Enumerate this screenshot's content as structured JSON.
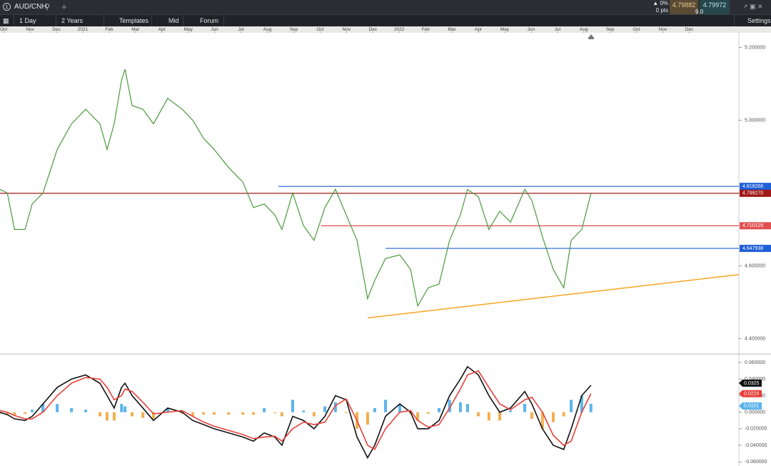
{
  "toolbar": {
    "symbol": "AUD/CNH",
    "change_pct": "0%",
    "change_pts": "0 pts",
    "bid": "4.79882",
    "ask": "4.79972",
    "spread": "9.0",
    "interval": "1 Day",
    "range": "2 Years",
    "templates": "Templates",
    "price_mode": "Mid",
    "forum": "Forum",
    "settings": "Settings"
  },
  "chart_data": [
    {
      "type": "line",
      "x": [
        -0.14,
        0.14,
        0.41,
        0.81,
        1.08,
        1.49,
        2.03,
        2.57,
        3.11,
        3.65,
        3.92,
        4.19,
        4.47,
        4.6,
        4.87,
        5.28,
        5.68,
        6.22,
        6.77,
        7.17,
        7.58,
        7.98,
        8.53,
        9.07,
        9.47,
        9.88,
        10.28,
        10.55,
        10.96,
        11.37,
        11.77,
        12.18,
        12.58,
        12.99,
        13.4,
        13.8,
        14.07,
        14.48,
        15.02,
        15.43,
        15.7,
        16.1,
        16.51,
        16.91,
        17.32,
        17.59,
        18.0,
        18.4,
        18.81,
        19.22,
        19.76,
        20.03,
        20.43,
        20.84,
        21.24,
        21.52,
        21.92,
        22.27
      ],
      "series": [
        {
          "color": "#4a9a3c",
          "values": [
            4.81,
            4.8,
            4.7,
            4.7,
            4.77,
            4.8,
            4.92,
            4.99,
            5.03,
            4.99,
            4.92,
            4.99,
            5.11,
            5.14,
            5.04,
            5.03,
            4.99,
            5.06,
            5.03,
            5.0,
            4.95,
            4.92,
            4.87,
            4.83,
            4.76,
            4.77,
            4.74,
            4.7,
            4.8,
            4.71,
            4.67,
            4.76,
            4.81,
            4.74,
            4.67,
            4.51,
            4.56,
            4.62,
            4.63,
            4.59,
            4.49,
            4.54,
            4.55,
            4.67,
            4.74,
            4.81,
            4.79,
            4.7,
            4.75,
            4.72,
            4.81,
            4.78,
            4.68,
            4.59,
            4.54,
            4.67,
            4.7,
            4.799
          ]
        }
      ],
      "xlim": [
        -0.14,
        27.88
      ],
      "xticks": [
        {
          "value": 0,
          "label": "Oct"
        },
        {
          "value": 1,
          "label": "Nov"
        },
        {
          "value": 2,
          "label": "Dec"
        },
        {
          "value": 3,
          "label": "2021"
        },
        {
          "value": 4,
          "label": "Feb"
        },
        {
          "value": 5,
          "label": "Mar"
        },
        {
          "value": 6,
          "label": "Apr"
        },
        {
          "value": 7,
          "label": "May"
        },
        {
          "value": 8,
          "label": "Jun"
        },
        {
          "value": 9,
          "label": "Jul"
        },
        {
          "value": 10,
          "label": "Aug"
        },
        {
          "value": 11,
          "label": "Sep"
        },
        {
          "value": 12,
          "label": "Oct"
        },
        {
          "value": 13,
          "label": "Nov"
        },
        {
          "value": 14,
          "label": "Dec"
        },
        {
          "value": 15,
          "label": "2022"
        },
        {
          "value": 16,
          "label": "Feb"
        },
        {
          "value": 17,
          "label": "Mar"
        },
        {
          "value": 18,
          "label": "Apr"
        },
        {
          "value": 19,
          "label": "May"
        },
        {
          "value": 20,
          "label": "Jun"
        },
        {
          "value": 21,
          "label": "Jul"
        },
        {
          "value": 22,
          "label": "Aug"
        },
        {
          "value": 23,
          "label": "Sep"
        },
        {
          "value": 24,
          "label": "Oct"
        },
        {
          "value": 25,
          "label": "Nov"
        },
        {
          "value": 26,
          "label": "Dec"
        }
      ],
      "ylim": [
        4.36,
        5.24
      ],
      "yticks": [
        {
          "value": 4.4,
          "label": "4.400000"
        },
        {
          "value": 4.6,
          "label": "4.600000"
        },
        {
          "value": 4.8,
          "label": "4.800000"
        },
        {
          "value": 5.0,
          "label": "5.000000"
        },
        {
          "value": 5.2,
          "label": "5.200000"
        }
      ],
      "levels": [
        {
          "value": 4.818266,
          "label": "4.818266",
          "color": "#1f5fd6",
          "from": 10.42
        },
        {
          "value": 4.710129,
          "label": "4.710129",
          "color": "#e05050",
          "from": 12.04
        },
        {
          "value": 4.647938,
          "label": "4.647938",
          "color": "#1f5fd6",
          "from": 14.48
        },
        {
          "value": 4.79927,
          "label": "4.799270",
          "color": "#a01818",
          "from": -0.14
        }
      ],
      "trendline": {
        "x": [
          13.8,
          27.88
        ],
        "y": [
          4.457,
          4.576
        ],
        "color": "#f5a623"
      }
    },
    {
      "type": "macd",
      "x": [
        -0.14,
        0.14,
        0.41,
        0.81,
        1.08,
        1.49,
        2.03,
        2.57,
        3.11,
        3.65,
        3.92,
        4.19,
        4.47,
        4.6,
        4.87,
        5.28,
        5.68,
        6.22,
        6.77,
        7.17,
        7.58,
        7.98,
        8.53,
        9.07,
        9.47,
        9.88,
        10.28,
        10.55,
        10.96,
        11.37,
        11.77,
        12.18,
        12.58,
        12.99,
        13.4,
        13.8,
        14.07,
        14.48,
        15.02,
        15.43,
        15.7,
        16.1,
        16.51,
        16.91,
        17.32,
        17.59,
        18.0,
        18.4,
        18.81,
        19.22,
        19.76,
        20.03,
        20.43,
        20.84,
        21.24,
        21.52,
        21.92,
        22.27
      ],
      "series": [
        {
          "color": "#111111",
          "values": [
            0.0,
            -0.003,
            -0.008,
            -0.01,
            -0.005,
            0.01,
            0.03,
            0.04,
            0.045,
            0.035,
            0.02,
            0.005,
            0.03,
            0.035,
            0.02,
            0.005,
            -0.01,
            0.005,
            0.0,
            -0.01,
            -0.015,
            -0.02,
            -0.025,
            -0.03,
            -0.035,
            -0.025,
            -0.03,
            -0.04,
            -0.005,
            -0.01,
            -0.02,
            -0.005,
            0.02,
            0.015,
            -0.03,
            -0.055,
            -0.04,
            -0.005,
            0.01,
            0.0,
            -0.02,
            -0.02,
            -0.01,
            0.02,
            0.04,
            0.055,
            0.045,
            0.02,
            0.0,
            0.005,
            0.025,
            0.01,
            -0.02,
            -0.04,
            -0.045,
            -0.02,
            0.02,
            0.0325
          ]
        },
        {
          "color": "#e8403a",
          "values": [
            0.002,
            0.0,
            -0.004,
            -0.008,
            -0.008,
            0.0,
            0.02,
            0.035,
            0.042,
            0.04,
            0.03,
            0.015,
            0.02,
            0.028,
            0.025,
            0.012,
            -0.002,
            0.0,
            0.002,
            -0.005,
            -0.012,
            -0.017,
            -0.022,
            -0.027,
            -0.032,
            -0.03,
            -0.029,
            -0.035,
            -0.02,
            -0.012,
            -0.015,
            -0.012,
            0.008,
            0.016,
            -0.01,
            -0.04,
            -0.045,
            -0.02,
            0.0,
            0.002,
            -0.01,
            -0.018,
            -0.015,
            0.005,
            0.028,
            0.045,
            0.05,
            0.03,
            0.01,
            0.003,
            0.015,
            0.018,
            0.0,
            -0.028,
            -0.04,
            -0.035,
            0.0,
            0.0224
          ]
        }
      ],
      "histogram": {
        "positive_color": "#5ab4ea",
        "negative_color": "#f0b050",
        "values": [
          -0.002,
          -0.003,
          -0.004,
          -0.002,
          0.003,
          0.01,
          0.01,
          0.005,
          0.003,
          -0.005,
          -0.01,
          -0.01,
          0.01,
          0.007,
          -0.005,
          -0.007,
          -0.008,
          0.005,
          -0.002,
          -0.005,
          -0.003,
          -0.003,
          -0.003,
          -0.003,
          -0.003,
          0.005,
          -0.001,
          -0.005,
          0.015,
          0.002,
          -0.005,
          0.007,
          0.012,
          -0.001,
          -0.02,
          -0.015,
          0.005,
          0.015,
          0.01,
          -0.002,
          -0.01,
          -0.002,
          0.005,
          0.015,
          0.012,
          0.01,
          -0.005,
          -0.01,
          -0.01,
          0.002,
          0.01,
          -0.008,
          -0.02,
          -0.012,
          -0.005,
          0.015,
          0.02,
          0.0101
        ]
      },
      "xlim": [
        -0.14,
        27.88
      ],
      "ylim": [
        -0.065,
        0.0695
      ],
      "yticks": [
        {
          "value": -0.06,
          "label": "-0.060000"
        },
        {
          "value": -0.04,
          "label": "-0.040000"
        },
        {
          "value": -0.02,
          "label": "-0.020000"
        },
        {
          "value": 0,
          "label": "0.000000"
        },
        {
          "value": 0.02,
          "label": "0.020000"
        },
        {
          "value": 0.04,
          "label": "0.040000"
        },
        {
          "value": 0.06,
          "label": "0.060000"
        }
      ],
      "markers": [
        {
          "value": 0.0325,
          "label": "0.0325",
          "color": "#111111"
        },
        {
          "value": 0.0224,
          "label": "0.0224",
          "color": "#e8403a"
        },
        {
          "value": 0.0101,
          "label": "0.0101",
          "color": "#5ab4ea"
        }
      ]
    }
  ]
}
